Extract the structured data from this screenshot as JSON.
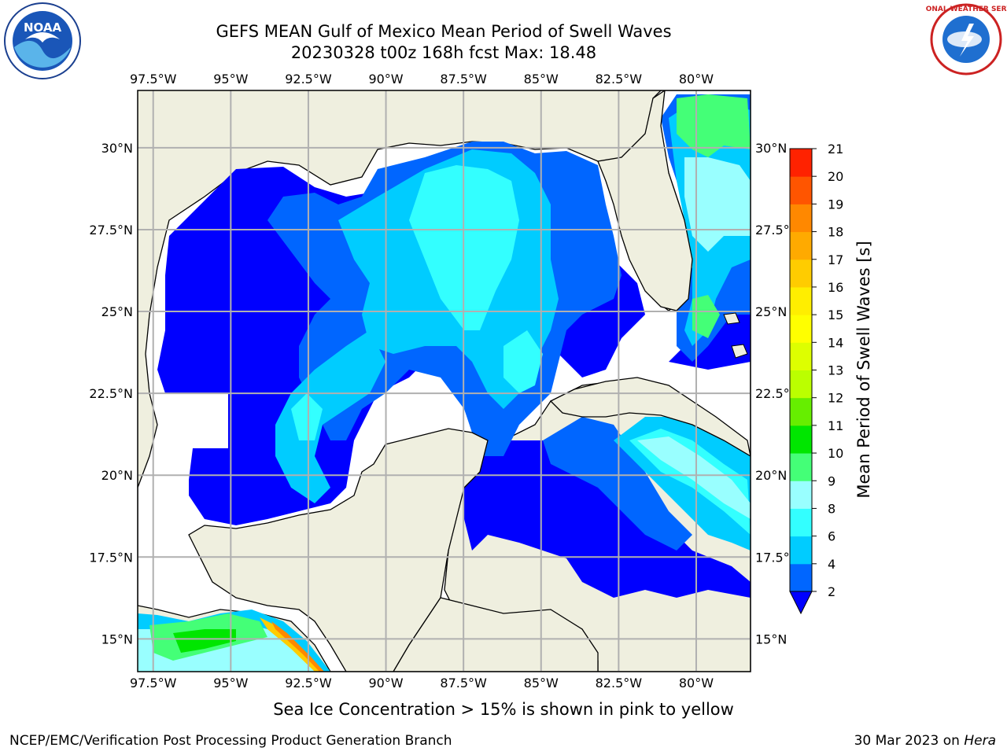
{
  "title": {
    "line1": "GEFS MEAN Gulf of Mexico Mean Period of Swell Waves",
    "line2": "20230328 t00z 168h fcst   Max: 18.48"
  },
  "logos": {
    "left": "NOAA",
    "right": "NATIONAL WEATHER SERVICE"
  },
  "axes": {
    "lon_labels": [
      "97.5°W",
      "95°W",
      "92.5°W",
      "90°W",
      "87.5°W",
      "85°W",
      "82.5°W",
      "80°W"
    ],
    "lon_values": [
      -97.5,
      -95,
      -92.5,
      -90,
      -87.5,
      -85,
      -82.5,
      -80
    ],
    "lat_labels": [
      "30°N",
      "27.5°N",
      "25°N",
      "22.5°N",
      "20°N",
      "17.5°N",
      "15°N"
    ],
    "lat_values": [
      30,
      27.5,
      25,
      22.5,
      20,
      17.5,
      15
    ],
    "lon_range": [
      -98,
      -78.25
    ],
    "lat_range": [
      14,
      31.75
    ],
    "grid": true
  },
  "colorbar": {
    "label": "Mean Period of Swell Waves [s]",
    "levels": [
      2,
      4,
      6,
      8,
      9,
      10,
      11,
      12,
      13,
      14,
      15,
      16,
      17,
      18,
      19,
      20,
      21
    ],
    "colors": [
      "#0066ff",
      "#00ccff",
      "#33ffff",
      "#99ffff",
      "#44ff77",
      "#00e600",
      "#66ee00",
      "#bbff00",
      "#ddff00",
      "#ffff00",
      "#ffee00",
      "#ffcc00",
      "#ffaa00",
      "#ff8800",
      "#ff5500",
      "#ff2200"
    ],
    "under_color": "#0000ff"
  },
  "colors": {
    "land": "#efefdf",
    "grid": "#b0b0b0",
    "ocean_none": "#ffffff"
  },
  "notes": {
    "ice": "Sea Ice Concentration > 15% is shown in pink to yellow"
  },
  "footer": {
    "left": "NCEP/EMC/Verification Post Processing Product Generation Branch",
    "right_date": "30 Mar 2023 on ",
    "right_host": "Hera"
  }
}
